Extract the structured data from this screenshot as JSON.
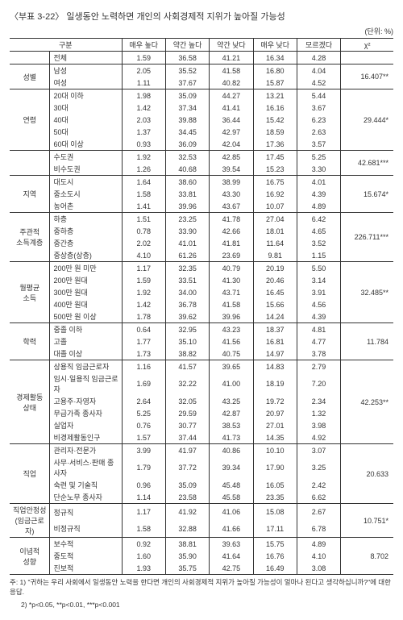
{
  "title": "〈부표 3-22〉 일생동안 노력하면 개인의 사회경제적 지위가 높아질 가능성",
  "unit": "(단위: %)",
  "headers": {
    "group": "구분",
    "c1": "매우 높다",
    "c2": "약간 높다",
    "c3": "약간 낮다",
    "c4": "매우 낮다",
    "c5": "모르겠다",
    "chi": "χ²"
  },
  "total_label": "전체",
  "total": [
    "1.59",
    "36.58",
    "41.21",
    "16.34",
    "4.28"
  ],
  "sections": [
    {
      "cat": "성별",
      "chi": "16.407**",
      "rows": [
        {
          "l": "남성",
          "v": [
            "2.05",
            "35.52",
            "41.58",
            "16.80",
            "4.04"
          ]
        },
        {
          "l": "여성",
          "v": [
            "1.11",
            "37.67",
            "40.82",
            "15.87",
            "4.52"
          ]
        }
      ]
    },
    {
      "cat": "연령",
      "chi": "29.444*",
      "rows": [
        {
          "l": "20대 이하",
          "v": [
            "1.98",
            "35.09",
            "44.27",
            "13.21",
            "5.44"
          ]
        },
        {
          "l": "30대",
          "v": [
            "1.42",
            "37.34",
            "41.41",
            "16.16",
            "3.67"
          ]
        },
        {
          "l": "40대",
          "v": [
            "2.03",
            "39.88",
            "36.44",
            "15.42",
            "6.23"
          ]
        },
        {
          "l": "50대",
          "v": [
            "1.37",
            "34.45",
            "42.97",
            "18.59",
            "2.63"
          ]
        },
        {
          "l": "60대 이상",
          "v": [
            "0.93",
            "36.09",
            "42.04",
            "17.36",
            "3.57"
          ]
        }
      ]
    },
    {
      "cat": "",
      "chi": "42.681***",
      "rows": [
        {
          "l": "수도권",
          "v": [
            "1.92",
            "32.53",
            "42.85",
            "17.45",
            "5.25"
          ]
        },
        {
          "l": "비수도권",
          "v": [
            "1.26",
            "40.68",
            "39.54",
            "15.23",
            "3.30"
          ]
        }
      ]
    },
    {
      "cat": "지역",
      "chi": "15.674*",
      "rows": [
        {
          "l": "대도시",
          "v": [
            "1.64",
            "38.60",
            "38.99",
            "16.75",
            "4.01"
          ]
        },
        {
          "l": "중소도시",
          "v": [
            "1.58",
            "33.81",
            "43.30",
            "16.92",
            "4.39"
          ]
        },
        {
          "l": "농어촌",
          "v": [
            "1.41",
            "39.96",
            "43.67",
            "10.07",
            "4.89"
          ]
        }
      ]
    },
    {
      "cat": "주관적\n소득계층",
      "chi": "226.711***",
      "rows": [
        {
          "l": "하층",
          "v": [
            "1.51",
            "23.25",
            "41.78",
            "27.04",
            "6.42"
          ]
        },
        {
          "l": "중하층",
          "v": [
            "0.78",
            "33.90",
            "42.66",
            "18.01",
            "4.65"
          ]
        },
        {
          "l": "중간층",
          "v": [
            "2.02",
            "41.01",
            "41.81",
            "11.64",
            "3.52"
          ]
        },
        {
          "l": "중상층(상층)",
          "v": [
            "4.10",
            "61.26",
            "23.69",
            "9.81",
            "1.15"
          ]
        }
      ]
    },
    {
      "cat": "월평균\n소득",
      "chi": "32.485**",
      "rows": [
        {
          "l": "200만 원 미만",
          "v": [
            "1.17",
            "32.35",
            "40.79",
            "20.19",
            "5.50"
          ]
        },
        {
          "l": "200만 원대",
          "v": [
            "1.59",
            "33.51",
            "41.30",
            "20.46",
            "3.14"
          ]
        },
        {
          "l": "300만 원대",
          "v": [
            "1.92",
            "34.00",
            "43.71",
            "16.45",
            "3.91"
          ]
        },
        {
          "l": "400만 원대",
          "v": [
            "1.42",
            "36.78",
            "41.58",
            "15.66",
            "4.56"
          ]
        },
        {
          "l": "500만 원 이상",
          "v": [
            "1.78",
            "39.62",
            "39.96",
            "14.24",
            "4.39"
          ]
        }
      ]
    },
    {
      "cat": "학력",
      "chi": "11.784",
      "rows": [
        {
          "l": "중졸 이하",
          "v": [
            "0.64",
            "32.95",
            "43.23",
            "18.37",
            "4.81"
          ]
        },
        {
          "l": "고졸",
          "v": [
            "1.77",
            "35.10",
            "41.56",
            "16.81",
            "4.77"
          ]
        },
        {
          "l": "대졸 이상",
          "v": [
            "1.73",
            "38.82",
            "40.75",
            "14.97",
            "3.78"
          ]
        }
      ]
    },
    {
      "cat": "경제활동\n상태",
      "chi": "42.253**",
      "rows": [
        {
          "l": "상용직 임금근로자",
          "v": [
            "1.16",
            "41.57",
            "39.65",
            "14.83",
            "2.79"
          ]
        },
        {
          "l": "임시·일용직 임금근로자",
          "v": [
            "1.69",
            "32.22",
            "41.00",
            "18.19",
            "7.20"
          ]
        },
        {
          "l": "고용주·자영자",
          "v": [
            "2.64",
            "32.05",
            "43.25",
            "19.72",
            "2.34"
          ]
        },
        {
          "l": "무급가족 종사자",
          "v": [
            "5.25",
            "29.59",
            "42.87",
            "20.97",
            "1.32"
          ]
        },
        {
          "l": "실업자",
          "v": [
            "0.76",
            "30.77",
            "38.53",
            "27.01",
            "3.98"
          ]
        },
        {
          "l": "비경제활동인구",
          "v": [
            "1.57",
            "37.44",
            "41.73",
            "14.35",
            "4.92"
          ]
        }
      ]
    },
    {
      "cat": "직업",
      "chi": "20.633",
      "rows": [
        {
          "l": "관리자·전문가",
          "v": [
            "3.99",
            "41.97",
            "40.86",
            "10.10",
            "3.07"
          ]
        },
        {
          "l": "사무·서비스·판매 종사자",
          "v": [
            "1.79",
            "37.72",
            "39.34",
            "17.90",
            "3.25"
          ]
        },
        {
          "l": "숙련 및 기술직",
          "v": [
            "0.96",
            "35.09",
            "45.48",
            "16.05",
            "2.42"
          ]
        },
        {
          "l": "단순노무 종사자",
          "v": [
            "1.14",
            "23.58",
            "45.58",
            "23.35",
            "6.62"
          ]
        }
      ]
    },
    {
      "cat": "직업안정성\n(임금근로자)",
      "chi": "10.751*",
      "rows": [
        {
          "l": "정규직",
          "v": [
            "1.17",
            "41.92",
            "41.06",
            "15.08",
            "2.67"
          ]
        },
        {
          "l": "비정규직",
          "v": [
            "1.58",
            "32.88",
            "41.66",
            "17.11",
            "6.78"
          ]
        }
      ]
    },
    {
      "cat": "이념적\n성향",
      "chi": "8.702",
      "rows": [
        {
          "l": "보수적",
          "v": [
            "0.92",
            "38.81",
            "39.63",
            "15.75",
            "4.89"
          ]
        },
        {
          "l": "중도적",
          "v": [
            "1.60",
            "35.90",
            "41.64",
            "16.76",
            "4.10"
          ]
        },
        {
          "l": "진보적",
          "v": [
            "1.93",
            "35.75",
            "42.75",
            "16.49",
            "3.08"
          ]
        }
      ]
    }
  ],
  "footnotes": [
    "주: 1) \"귀하는 우리 사회에서 일생동안 노력을 한다면 개인의 사회경제적 지위가 높아질 가능성이 얼마나 된다고 생각하십니까?\"에 대한 응답.",
    "2) *p<0.05, **p<0.01, ***p<0.001"
  ]
}
